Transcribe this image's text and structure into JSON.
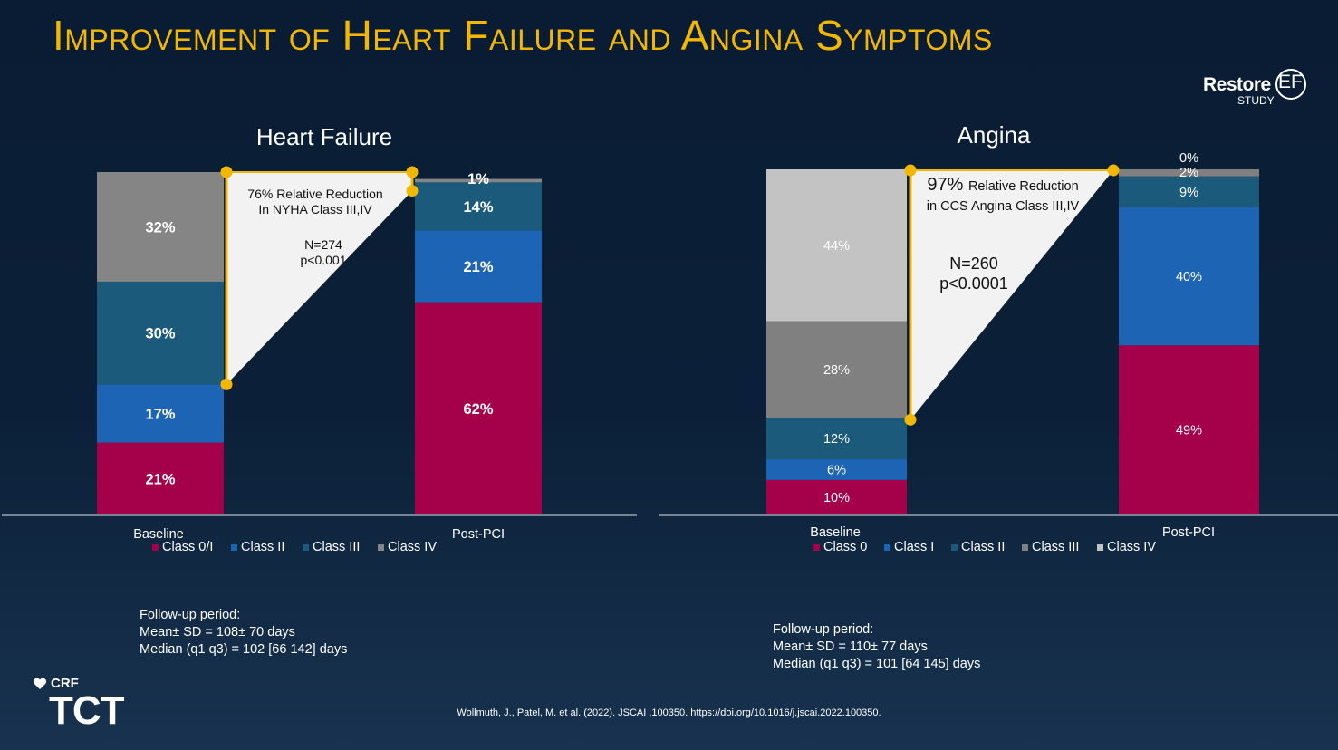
{
  "title": "Improvement of Heart Failure and Angina Symptoms",
  "logo": {
    "restore_word": "Restore",
    "ef": "EF",
    "study": "STUDY",
    "icon": "restore-ef-logo"
  },
  "chart_data": [
    {
      "type": "bar",
      "stacked": true,
      "title": "Heart Failure",
      "categories": [
        "Baseline",
        "Post-PCI"
      ],
      "series": [
        {
          "name": "Class 0/I",
          "color": "#a5004a",
          "values": [
            21,
            62
          ],
          "labels": [
            "21%",
            "62%"
          ]
        },
        {
          "name": "Class II",
          "color": "#1e64b4",
          "values": [
            17,
            21
          ],
          "labels": [
            "17%",
            "21%"
          ]
        },
        {
          "name": "Class III",
          "color": "#1b5a7a",
          "values": [
            30,
            14
          ],
          "labels": [
            "30%",
            "14%"
          ]
        },
        {
          "name": "Class IV",
          "color": "#858585",
          "values": [
            32,
            1
          ],
          "labels": [
            "32%",
            "1%"
          ]
        }
      ],
      "annotation": {
        "reduction": "76% Relative Reduction",
        "reduction_line2": "In NYHA Class III,IV",
        "n": "N=274",
        "p": "p<0.001"
      },
      "ylim": [
        0,
        100
      ]
    },
    {
      "type": "bar",
      "stacked": true,
      "title": "Angina",
      "categories": [
        "Baseline",
        "Post-PCI"
      ],
      "series": [
        {
          "name": "Class 0",
          "color": "#a5004a",
          "values": [
            10,
            49
          ],
          "labels": [
            "10%",
            "49%"
          ]
        },
        {
          "name": "Class I",
          "color": "#1e64b4",
          "values": [
            6,
            40
          ],
          "labels": [
            "6%",
            "40%"
          ]
        },
        {
          "name": "Class II",
          "color": "#1b5a7a",
          "values": [
            12,
            9
          ],
          "labels": [
            "12%",
            "9%"
          ]
        },
        {
          "name": "Class III",
          "color": "#808080",
          "values": [
            28,
            2
          ],
          "labels": [
            "28%",
            "2%"
          ]
        },
        {
          "name": "Class IV",
          "color": "#c3c3c3",
          "values": [
            44,
            0
          ],
          "labels": [
            "44%",
            "0%"
          ]
        }
      ],
      "annotation": {
        "reduction_pct": "97%",
        "reduction": "Relative Reduction",
        "reduction_line2": "in CCS Angina Class III,IV",
        "n": "N=260",
        "p": "p<0.0001"
      },
      "ylim": [
        0,
        100
      ]
    }
  ],
  "followup_left": {
    "heading": "Follow-up period:",
    "mean": "Mean± SD = 108± 70 days",
    "median": "Median (q1 q3) = 102 [66 142] days"
  },
  "followup_right": {
    "heading": "Follow-up period:",
    "mean": "Mean± SD = 110± 77 days",
    "median": "Median (q1 q3) = 101 [64 145] days"
  },
  "citation": "Wollmuth, J., Patel, M. et al. (2022). JSCAI ,100350. https://doi.org/10.1016/j.jscai.2022.100350.",
  "footer_logo": {
    "crf": "CRF",
    "tct": "TCT",
    "icon": "crf-heart-icon"
  }
}
